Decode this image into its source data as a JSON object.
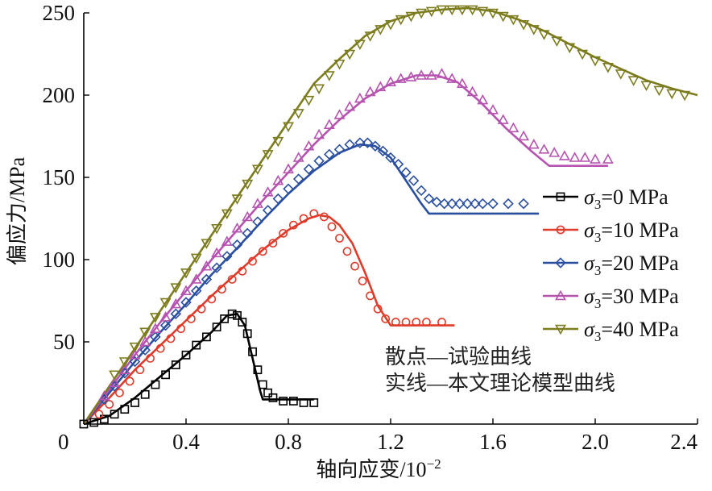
{
  "chart_data": {
    "type": "line",
    "xlabel": "轴向应变/10",
    "xlabel_exp": "−2",
    "ylabel": "偏应力/MPa",
    "xlim": [
      0,
      2.4
    ],
    "ylim": [
      0,
      250
    ],
    "x_ticks": [
      0,
      0.4,
      0.8,
      1.2,
      1.6,
      2.0,
      2.4
    ],
    "x_tick_labels": [
      "0",
      "0.4",
      "0.8",
      "1.2",
      "1.6",
      "2.0",
      "2.4"
    ],
    "y_ticks": [
      50,
      100,
      150,
      200,
      250
    ],
    "y_tick_labels": [
      "50",
      "100",
      "150",
      "200",
      "250"
    ],
    "legend_position": "right",
    "annotations": [
      "散点—试验曲线",
      "实线—本文理论模型曲线"
    ],
    "series": [
      {
        "name": "σ3=0 MPa",
        "legend_sym": "σ",
        "legend_sub": "3",
        "legend_rest": "=0 MPa",
        "color": "#000000",
        "marker": "square",
        "model": [
          [
            0,
            0
          ],
          [
            0.1,
            5
          ],
          [
            0.2,
            16
          ],
          [
            0.3,
            29
          ],
          [
            0.4,
            42
          ],
          [
            0.5,
            56
          ],
          [
            0.56,
            66
          ],
          [
            0.6,
            67
          ],
          [
            0.63,
            60
          ],
          [
            0.66,
            40
          ],
          [
            0.69,
            20
          ],
          [
            0.7,
            15
          ],
          [
            0.9,
            15
          ]
        ],
        "experiment": [
          [
            0,
            0
          ],
          [
            0.04,
            1
          ],
          [
            0.08,
            3
          ],
          [
            0.12,
            6
          ],
          [
            0.16,
            9
          ],
          [
            0.2,
            13
          ],
          [
            0.24,
            18
          ],
          [
            0.28,
            24
          ],
          [
            0.32,
            30
          ],
          [
            0.36,
            36
          ],
          [
            0.4,
            42
          ],
          [
            0.44,
            48
          ],
          [
            0.48,
            53
          ],
          [
            0.52,
            59
          ],
          [
            0.55,
            64
          ],
          [
            0.58,
            67
          ],
          [
            0.6,
            66
          ],
          [
            0.62,
            62
          ],
          [
            0.64,
            55
          ],
          [
            0.66,
            44
          ],
          [
            0.68,
            33
          ],
          [
            0.7,
            24
          ],
          [
            0.72,
            19
          ],
          [
            0.74,
            16
          ],
          [
            0.78,
            14
          ],
          [
            0.82,
            14
          ],
          [
            0.86,
            13
          ],
          [
            0.9,
            13
          ]
        ]
      },
      {
        "name": "σ3=10 MPa",
        "legend_sym": "σ",
        "legend_sub": "3",
        "legend_rest": "=10 MPa",
        "color": "#e03a2a",
        "marker": "circle",
        "model": [
          [
            0,
            0
          ],
          [
            0.1,
            16
          ],
          [
            0.2,
            33
          ],
          [
            0.3,
            48
          ],
          [
            0.4,
            63
          ],
          [
            0.5,
            78
          ],
          [
            0.6,
            92
          ],
          [
            0.7,
            106
          ],
          [
            0.8,
            118
          ],
          [
            0.88,
            125
          ],
          [
            0.92,
            127
          ],
          [
            0.96,
            126
          ],
          [
            1.0,
            121
          ],
          [
            1.05,
            110
          ],
          [
            1.1,
            92
          ],
          [
            1.15,
            72
          ],
          [
            1.2,
            60
          ],
          [
            1.45,
            60
          ]
        ],
        "experiment": [
          [
            0.06,
            6
          ],
          [
            0.1,
            12
          ],
          [
            0.14,
            19
          ],
          [
            0.18,
            26
          ],
          [
            0.22,
            33
          ],
          [
            0.26,
            40
          ],
          [
            0.3,
            46
          ],
          [
            0.34,
            52
          ],
          [
            0.38,
            58
          ],
          [
            0.42,
            64
          ],
          [
            0.46,
            70
          ],
          [
            0.5,
            76
          ],
          [
            0.54,
            82
          ],
          [
            0.58,
            88
          ],
          [
            0.62,
            93
          ],
          [
            0.66,
            99
          ],
          [
            0.7,
            105
          ],
          [
            0.74,
            110
          ],
          [
            0.78,
            116
          ],
          [
            0.82,
            121
          ],
          [
            0.86,
            125
          ],
          [
            0.9,
            128
          ],
          [
            0.94,
            126
          ],
          [
            0.97,
            120
          ],
          [
            1.0,
            113
          ],
          [
            1.03,
            105
          ],
          [
            1.06,
            96
          ],
          [
            1.09,
            87
          ],
          [
            1.12,
            78
          ],
          [
            1.15,
            70
          ],
          [
            1.18,
            64
          ],
          [
            1.22,
            62
          ],
          [
            1.26,
            62
          ],
          [
            1.3,
            62
          ],
          [
            1.34,
            62
          ],
          [
            1.4,
            62
          ]
        ]
      },
      {
        "name": "σ3=20 MPa",
        "legend_sym": "σ",
        "legend_sub": "3",
        "legend_rest": "=20 MPa",
        "color": "#2a4fa0",
        "marker": "diamond",
        "model": [
          [
            0,
            0
          ],
          [
            0.1,
            19
          ],
          [
            0.2,
            38
          ],
          [
            0.3,
            56
          ],
          [
            0.4,
            73
          ],
          [
            0.5,
            91
          ],
          [
            0.6,
            107
          ],
          [
            0.7,
            124
          ],
          [
            0.8,
            140
          ],
          [
            0.9,
            154
          ],
          [
            1.0,
            165
          ],
          [
            1.08,
            170
          ],
          [
            1.14,
            169
          ],
          [
            1.2,
            162
          ],
          [
            1.26,
            148
          ],
          [
            1.32,
            134
          ],
          [
            1.35,
            128
          ],
          [
            1.78,
            128
          ]
        ],
        "experiment": [
          [
            0.08,
            15
          ],
          [
            0.12,
            23
          ],
          [
            0.16,
            31
          ],
          [
            0.2,
            38
          ],
          [
            0.24,
            45
          ],
          [
            0.28,
            53
          ],
          [
            0.32,
            60
          ],
          [
            0.36,
            67
          ],
          [
            0.4,
            74
          ],
          [
            0.44,
            81
          ],
          [
            0.48,
            88
          ],
          [
            0.52,
            95
          ],
          [
            0.56,
            102
          ],
          [
            0.6,
            109
          ],
          [
            0.64,
            116
          ],
          [
            0.68,
            123
          ],
          [
            0.72,
            130
          ],
          [
            0.76,
            137
          ],
          [
            0.8,
            143
          ],
          [
            0.84,
            149
          ],
          [
            0.88,
            155
          ],
          [
            0.92,
            160
          ],
          [
            0.96,
            164
          ],
          [
            1.0,
            167
          ],
          [
            1.04,
            170
          ],
          [
            1.08,
            171
          ],
          [
            1.11,
            171
          ],
          [
            1.14,
            169
          ],
          [
            1.17,
            166
          ],
          [
            1.2,
            162
          ],
          [
            1.23,
            158
          ],
          [
            1.26,
            153
          ],
          [
            1.29,
            148
          ],
          [
            1.32,
            142
          ],
          [
            1.35,
            137
          ],
          [
            1.38,
            135
          ],
          [
            1.41,
            134
          ],
          [
            1.44,
            134
          ],
          [
            1.47,
            134
          ],
          [
            1.5,
            134
          ],
          [
            1.53,
            134
          ],
          [
            1.56,
            134
          ],
          [
            1.6,
            134
          ],
          [
            1.66,
            134
          ],
          [
            1.72,
            134
          ]
        ]
      },
      {
        "name": "σ3=30 MPa",
        "legend_sym": "σ",
        "legend_sub": "3",
        "legend_rest": "=30 MPa",
        "color": "#b653b0",
        "marker": "triangle-up",
        "model": [
          [
            0,
            0
          ],
          [
            0.1,
            21
          ],
          [
            0.2,
            42
          ],
          [
            0.3,
            62
          ],
          [
            0.4,
            81
          ],
          [
            0.5,
            100
          ],
          [
            0.6,
            118
          ],
          [
            0.7,
            136
          ],
          [
            0.8,
            153
          ],
          [
            0.9,
            170
          ],
          [
            1.0,
            185
          ],
          [
            1.1,
            198
          ],
          [
            1.2,
            207
          ],
          [
            1.3,
            212
          ],
          [
            1.38,
            212
          ],
          [
            1.46,
            208
          ],
          [
            1.55,
            196
          ],
          [
            1.65,
            180
          ],
          [
            1.75,
            166
          ],
          [
            1.82,
            157
          ],
          [
            2.05,
            157
          ]
        ],
        "experiment": [
          [
            0.08,
            17
          ],
          [
            0.12,
            25
          ],
          [
            0.16,
            33
          ],
          [
            0.2,
            42
          ],
          [
            0.24,
            50
          ],
          [
            0.28,
            58
          ],
          [
            0.32,
            65
          ],
          [
            0.36,
            73
          ],
          [
            0.4,
            81
          ],
          [
            0.44,
            88
          ],
          [
            0.48,
            96
          ],
          [
            0.52,
            104
          ],
          [
            0.56,
            111
          ],
          [
            0.6,
            119
          ],
          [
            0.64,
            126
          ],
          [
            0.68,
            134
          ],
          [
            0.72,
            141
          ],
          [
            0.76,
            148
          ],
          [
            0.8,
            155
          ],
          [
            0.84,
            162
          ],
          [
            0.88,
            169
          ],
          [
            0.92,
            176
          ],
          [
            0.96,
            182
          ],
          [
            1.0,
            188
          ],
          [
            1.04,
            193
          ],
          [
            1.08,
            198
          ],
          [
            1.12,
            202
          ],
          [
            1.16,
            205
          ],
          [
            1.2,
            208
          ],
          [
            1.24,
            210
          ],
          [
            1.28,
            211
          ],
          [
            1.32,
            212
          ],
          [
            1.36,
            212
          ],
          [
            1.4,
            213
          ],
          [
            1.44,
            210
          ],
          [
            1.48,
            207
          ],
          [
            1.52,
            202
          ],
          [
            1.56,
            197
          ],
          [
            1.6,
            191
          ],
          [
            1.64,
            185
          ],
          [
            1.68,
            180
          ],
          [
            1.72,
            175
          ],
          [
            1.76,
            170
          ],
          [
            1.8,
            167
          ],
          [
            1.84,
            165
          ],
          [
            1.88,
            163
          ],
          [
            1.92,
            162
          ],
          [
            1.96,
            162
          ],
          [
            2.0,
            161
          ],
          [
            2.05,
            161
          ]
        ]
      },
      {
        "name": "σ3=40 MPa",
        "legend_sym": "σ",
        "legend_sub": "3",
        "legend_rest": "=40 MPa",
        "color": "#7c7c1e",
        "marker": "triangle-down",
        "model": [
          [
            0,
            0
          ],
          [
            0.1,
            23
          ],
          [
            0.2,
            46
          ],
          [
            0.3,
            69
          ],
          [
            0.4,
            92
          ],
          [
            0.5,
            115
          ],
          [
            0.6,
            138
          ],
          [
            0.7,
            161
          ],
          [
            0.8,
            184
          ],
          [
            0.9,
            207
          ],
          [
            1.0,
            222
          ],
          [
            1.1,
            236
          ],
          [
            1.2,
            245
          ],
          [
            1.3,
            250
          ],
          [
            1.4,
            252
          ],
          [
            1.5,
            253
          ],
          [
            1.6,
            251
          ],
          [
            1.7,
            246
          ],
          [
            1.8,
            239
          ],
          [
            1.9,
            231
          ],
          [
            2.0,
            223
          ],
          [
            2.1,
            216
          ],
          [
            2.2,
            209
          ],
          [
            2.3,
            204
          ],
          [
            2.4,
            200
          ]
        ],
        "experiment": [
          [
            0.12,
            30
          ],
          [
            0.16,
            38
          ],
          [
            0.2,
            47
          ],
          [
            0.24,
            56
          ],
          [
            0.28,
            65
          ],
          [
            0.32,
            74
          ],
          [
            0.36,
            83
          ],
          [
            0.4,
            92
          ],
          [
            0.44,
            101
          ],
          [
            0.48,
            110
          ],
          [
            0.52,
            119
          ],
          [
            0.56,
            128
          ],
          [
            0.6,
            137
          ],
          [
            0.64,
            146
          ],
          [
            0.68,
            155
          ],
          [
            0.72,
            164
          ],
          [
            0.76,
            172
          ],
          [
            0.8,
            181
          ],
          [
            0.84,
            189
          ],
          [
            0.88,
            197
          ],
          [
            0.92,
            204
          ],
          [
            0.96,
            212
          ],
          [
            1.0,
            219
          ],
          [
            1.04,
            225
          ],
          [
            1.08,
            231
          ],
          [
            1.12,
            236
          ],
          [
            1.16,
            240
          ],
          [
            1.2,
            243
          ],
          [
            1.24,
            246
          ],
          [
            1.28,
            248
          ],
          [
            1.32,
            250
          ],
          [
            1.36,
            251
          ],
          [
            1.4,
            252
          ],
          [
            1.44,
            252
          ],
          [
            1.48,
            252
          ],
          [
            1.52,
            252
          ],
          [
            1.56,
            251
          ],
          [
            1.6,
            250
          ],
          [
            1.64,
            248
          ],
          [
            1.68,
            246
          ],
          [
            1.72,
            243
          ],
          [
            1.76,
            240
          ],
          [
            1.8,
            237
          ],
          [
            1.85,
            233
          ],
          [
            1.9,
            229
          ],
          [
            1.95,
            225
          ],
          [
            2.0,
            221
          ],
          [
            2.05,
            217
          ],
          [
            2.1,
            213
          ],
          [
            2.15,
            209
          ],
          [
            2.2,
            206
          ],
          [
            2.25,
            203
          ],
          [
            2.3,
            201
          ],
          [
            2.35,
            200
          ]
        ]
      }
    ]
  }
}
